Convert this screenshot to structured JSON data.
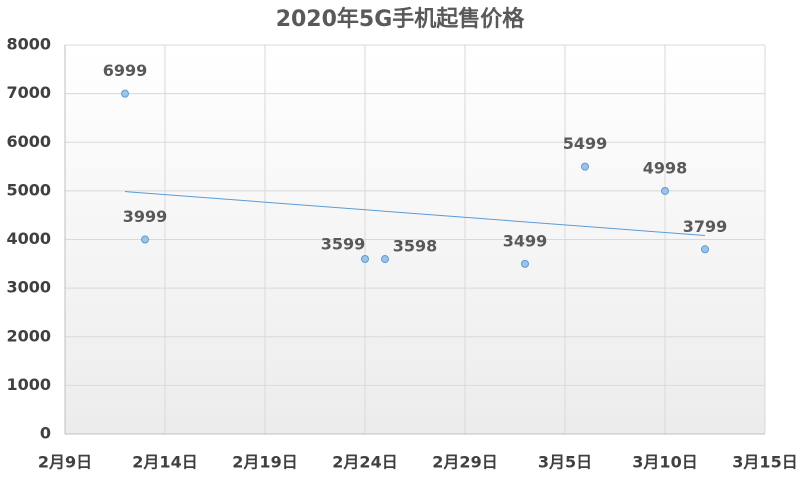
{
  "chart_data": {
    "type": "scatter",
    "title": "2020年5G手机起售价格",
    "x": [
      43,
      44,
      55,
      56,
      63,
      66,
      70,
      72
    ],
    "series": [
      {
        "color": "#5b9bd5",
        "values": [
          6999,
          3999,
          3599,
          3598,
          3499,
          5499,
          4998,
          3799
        ]
      }
    ],
    "xlim": [
      40,
      75
    ],
    "xticks": [
      {
        "value": 40,
        "label": "2月9日"
      },
      {
        "value": 45,
        "label": "2月14日"
      },
      {
        "value": 50,
        "label": "2月19日"
      },
      {
        "value": 55,
        "label": "2月24日"
      },
      {
        "value": 60,
        "label": "2月29日"
      },
      {
        "value": 65,
        "label": "3月5日"
      },
      {
        "value": 70,
        "label": "3月10日"
      },
      {
        "value": 75,
        "label": "3月15日"
      }
    ],
    "ylim": [
      0,
      8000
    ],
    "yticks": [
      0,
      1000,
      2000,
      3000,
      4000,
      5000,
      6000,
      7000,
      8000
    ],
    "grid": true,
    "trendline": true,
    "data_labels": true
  }
}
